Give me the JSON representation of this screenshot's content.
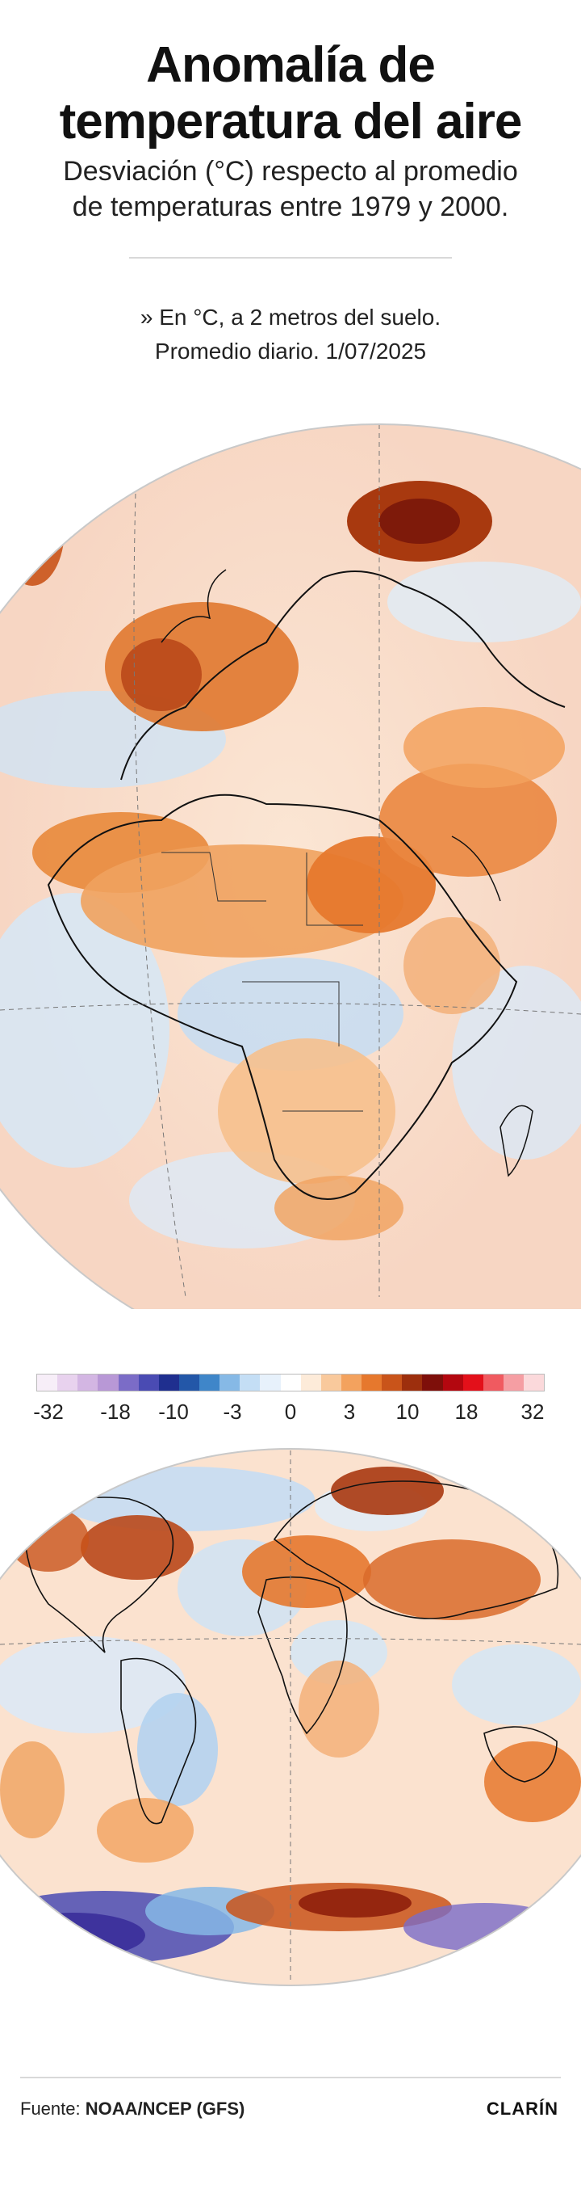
{
  "header": {
    "title_line1": "Anomalía de",
    "title_line2": "temperatura del aire",
    "subtitle_line1": "Desviación (°C) respecto al promedio",
    "subtitle_line2": "de temperaturas entre 1979 y 2000.",
    "note_line1": "» En °C, a 2 metros del suelo.",
    "note_line2": "Promedio diario. 1/07/2025"
  },
  "maps": [
    {
      "id": "africa-europe-view",
      "region": "Europe and Africa"
    },
    {
      "id": "world-view",
      "region": "World"
    }
  ],
  "legend": {
    "colors": [
      "#f7eef8",
      "#e8d2ee",
      "#d3b6e3",
      "#b898d6",
      "#7b6cc7",
      "#4a4bb3",
      "#1f2f8f",
      "#2357a8",
      "#3f86c9",
      "#86b9e6",
      "#c4def5",
      "#e7f1fb",
      "#ffffff",
      "#fdebd9",
      "#f9c99c",
      "#f3a25e",
      "#e6782d",
      "#c9541a",
      "#9d2f0d",
      "#7e0f0a",
      "#b3070f",
      "#e3101a",
      "#f05a60",
      "#f59ea3",
      "#fbd9db"
    ],
    "labels": [
      "-32",
      "-18",
      "-10",
      "-3",
      "0",
      "3",
      "10",
      "18",
      "32"
    ]
  },
  "footer": {
    "source_label": "Fuente:",
    "source_value": "NOAA/NCEP (GFS)",
    "brand": "CLARÍN"
  }
}
